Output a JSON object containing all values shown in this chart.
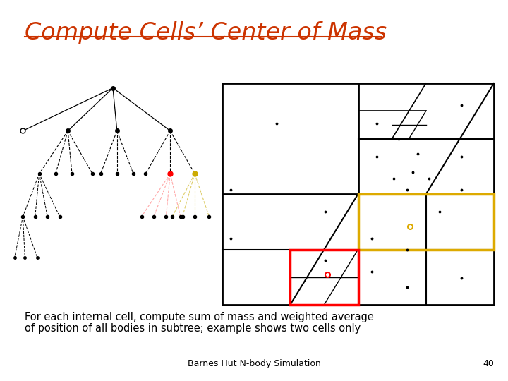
{
  "title": "Compute Cells’ Center of Mass",
  "title_color": "#cc3300",
  "body_text_line1": "For each internal cell, compute sum of mass and weighted average",
  "body_text_line2": "of position of all bodies in subtree; example shows two cells only",
  "footer_text": "Barnes Hut N-body Simulation",
  "footer_page": "40",
  "bg_color": "#ffffff"
}
